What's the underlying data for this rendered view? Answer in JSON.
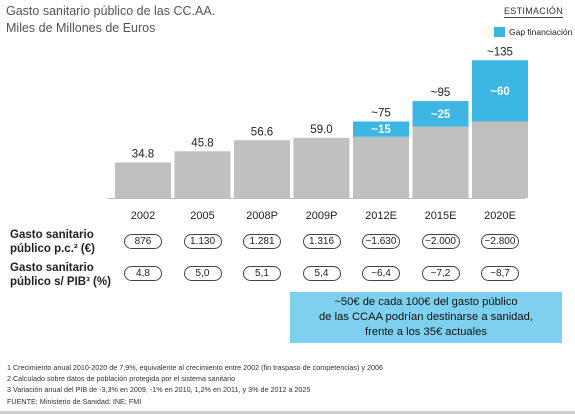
{
  "title_line1": "Gasto sanitario público de las CC.AA.",
  "title_line2": "Miles de Millones de Euros",
  "badge": "ESTIMACIÓN",
  "legend_label": "Gap financiación",
  "colors": {
    "base": "#c0c0c0",
    "gap": "#3cb6e3",
    "callout": "#7fd0ef"
  },
  "chart_data": {
    "type": "bar",
    "stacked": true,
    "categories": [
      "2002",
      "2005",
      "2008P",
      "2009P",
      "2012E",
      "2015E",
      "2020E"
    ],
    "series": [
      {
        "name": "",
        "values": [
          34.8,
          45.8,
          56.6,
          59.0,
          60,
          70,
          75
        ]
      },
      {
        "name": "Gap financiación",
        "values": [
          0,
          0,
          0,
          0,
          15,
          25,
          60
        ]
      }
    ],
    "value_labels": [
      "34.8",
      "45.8",
      "56.6",
      "59.0",
      "",
      "",
      ""
    ],
    "total_labels": [
      "",
      "",
      "",
      "",
      "~75",
      "~95",
      "~135"
    ],
    "gap_labels": [
      "",
      "",
      "",
      "",
      "~15",
      "~25",
      "~60"
    ],
    "ylim": [
      0,
      140
    ]
  },
  "row1": {
    "label_a": "Gasto sanitario",
    "label_b": "público p.c.² (€)",
    "values": [
      "876",
      "1.130",
      "1.281",
      "1.316",
      "~1.630",
      "~2.000",
      "~2.800"
    ]
  },
  "row2": {
    "label_a": "Gasto sanitario",
    "label_b": "público s/ PIB³ (%)",
    "values": [
      "4,8",
      "5,0",
      "5,1",
      "5,4",
      "~6,4",
      "~7,2",
      "~8,7"
    ]
  },
  "callout_lines": [
    "~50€ de cada 100€ del gasto público",
    "de las CCAA podrían destinarse a sanidad,",
    "frente a los 35€ actuales"
  ],
  "footnotes": [
    "1 Crecimiento anual 2010-2020 de 7,9%, equivalente al crecimiento entre 2002 (fin traspaso de competencias) y 2006",
    "2 Calculado sobre datos de población protegida por el sistema sanitario",
    "3 Variación anual del PIB de -3,3% en 2009, -1% en 2010, 1,2% en 2011, y 3% de 2012 a 2025",
    "FUENTE: Ministerio de Sanidad; INE; FMI"
  ]
}
